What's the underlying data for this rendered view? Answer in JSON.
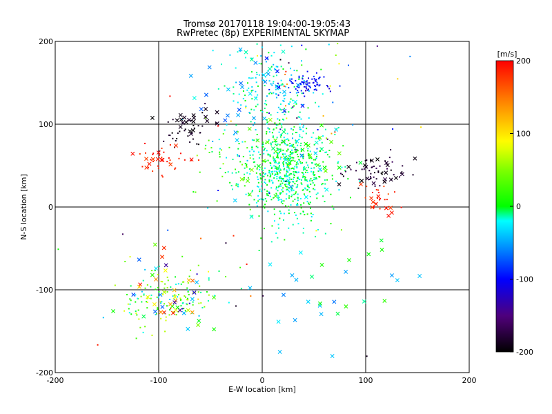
{
  "chart_data": {
    "type": "scatter",
    "title": "Tromsø 20170118 19:04:00-19:05:43",
    "subtitle": "RwPretec (8p) EXPERIMENTAL SKYMAP",
    "xlabel": "E-W location [km]",
    "ylabel": "N-S location [km]",
    "xlim": [
      -200,
      200
    ],
    "ylim": [
      -200,
      200
    ],
    "xticks": [
      "-200",
      "-100",
      "0",
      "100",
      "200"
    ],
    "yticks": [
      "-200",
      "-100",
      "0",
      "100",
      "200"
    ],
    "grid": true,
    "colorbar": {
      "unit": "[m/s]",
      "range": [
        -200,
        200
      ],
      "tick_labels": [
        "200",
        "100",
        "0",
        "-100",
        "-200"
      ]
    },
    "marker_kinds": [
      "dot",
      "cross"
    ],
    "clusters": [
      {
        "center": [
          22,
          42
        ],
        "spread": [
          22,
          28
        ],
        "n": 650,
        "velocity": [
          -30,
          15
        ],
        "marker": "dot"
      },
      {
        "center": [
          10,
          130
        ],
        "spread": [
          22,
          35
        ],
        "n": 220,
        "velocity": [
          -45,
          5
        ],
        "marker": "dot"
      },
      {
        "center": [
          42,
          148
        ],
        "spread": [
          12,
          6
        ],
        "n": 80,
        "velocity": [
          -120,
          -80
        ],
        "marker": "dot"
      },
      {
        "center": [
          -95,
          55
        ],
        "spread": [
          15,
          8
        ],
        "n": 30,
        "velocity": [
          170,
          200
        ],
        "marker": "dot"
      },
      {
        "center": [
          -75,
          88
        ],
        "spread": [
          15,
          10
        ],
        "n": 30,
        "velocity": [
          -200,
          -175
        ],
        "marker": "dot"
      },
      {
        "center": [
          112,
          40
        ],
        "spread": [
          14,
          10
        ],
        "n": 50,
        "velocity": [
          -200,
          -160
        ],
        "marker": "dot"
      },
      {
        "center": [
          115,
          10
        ],
        "spread": [
          10,
          8
        ],
        "n": 20,
        "velocity": [
          160,
          200
        ],
        "marker": "dot"
      },
      {
        "center": [
          -95,
          -110
        ],
        "spread": [
          22,
          20
        ],
        "n": 140,
        "velocity": [
          -40,
          80
        ],
        "marker": "dot"
      },
      {
        "center": [
          -35,
          55
        ],
        "spread": [
          20,
          20
        ],
        "n": 40,
        "velocity": [
          -20,
          60
        ],
        "marker": "dot"
      },
      {
        "center": [
          30,
          120
        ],
        "spread": [
          55,
          55
        ],
        "n": 60,
        "velocity": [
          -200,
          200
        ],
        "marker": "dot"
      },
      {
        "center": [
          -70,
          100
        ],
        "spread": [
          15,
          10
        ],
        "n": 20,
        "velocity": [
          -200,
          -180
        ],
        "marker": "cross"
      },
      {
        "center": [
          -100,
          55
        ],
        "spread": [
          15,
          8
        ],
        "n": 12,
        "velocity": [
          170,
          200
        ],
        "marker": "cross"
      },
      {
        "center": [
          110,
          45
        ],
        "spread": [
          15,
          10
        ],
        "n": 18,
        "velocity": [
          -200,
          -170
        ],
        "marker": "cross"
      },
      {
        "center": [
          115,
          0
        ],
        "spread": [
          12,
          10
        ],
        "n": 10,
        "velocity": [
          165,
          200
        ],
        "marker": "cross"
      },
      {
        "center": [
          0,
          145
        ],
        "spread": [
          30,
          25
        ],
        "n": 35,
        "velocity": [
          -100,
          -10
        ],
        "marker": "cross"
      },
      {
        "center": [
          20,
          60
        ],
        "spread": [
          35,
          30
        ],
        "n": 50,
        "velocity": [
          -60,
          60
        ],
        "marker": "cross"
      },
      {
        "center": [
          -90,
          -105
        ],
        "spread": [
          25,
          25
        ],
        "n": 45,
        "velocity": [
          -150,
          200
        ],
        "marker": "cross"
      },
      {
        "center": [
          60,
          -110
        ],
        "spread": [
          50,
          45
        ],
        "n": 30,
        "velocity": [
          -70,
          20
        ],
        "marker": "cross"
      },
      {
        "center": [
          -30,
          -60
        ],
        "spread": [
          70,
          60
        ],
        "n": 30,
        "velocity": [
          -200,
          200
        ],
        "marker": "dot"
      }
    ]
  }
}
